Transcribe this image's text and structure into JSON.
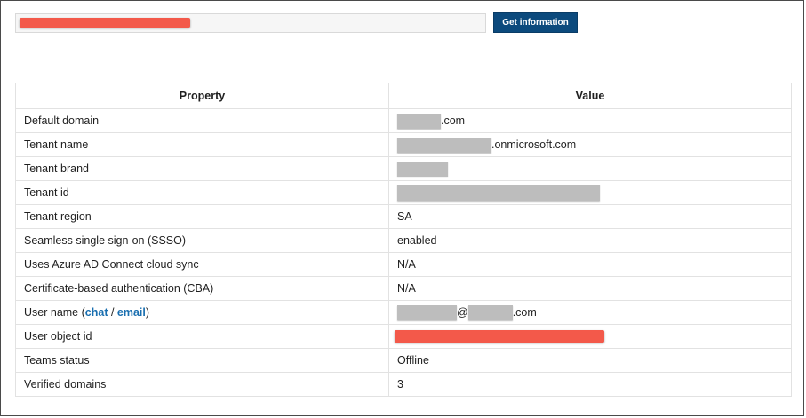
{
  "search": {
    "value": "",
    "button_label": "Get information"
  },
  "table": {
    "headers": [
      "Property",
      "Value"
    ],
    "rows": [
      {
        "property": "Default domain",
        "value_suffix": ".com"
      },
      {
        "property": "Tenant name",
        "value_suffix": ".onmicrosoft.com"
      },
      {
        "property": "Tenant brand",
        "value_suffix": ""
      },
      {
        "property": "Tenant id",
        "value_suffix": ""
      },
      {
        "property": "Tenant region",
        "value": "SA"
      },
      {
        "property": "Seamless single sign-on (SSSO)",
        "value": "enabled"
      },
      {
        "property": "Uses Azure AD Connect cloud sync",
        "value": "N/A"
      },
      {
        "property": "Certificate-based authentication (CBA)",
        "value": "N/A"
      },
      {
        "property_prefix": "User name (",
        "link_chat": "chat",
        "separator": " / ",
        "link_email": "email",
        "property_suffix": ")",
        "value_at": "@",
        "value_suffix": ".com"
      },
      {
        "property": "User object id",
        "value_suffix": ""
      },
      {
        "property": "Teams status",
        "value": "Offline"
      },
      {
        "property": "Verified domains",
        "value": "3"
      }
    ]
  },
  "colors": {
    "button_bg": "#0c4a7d",
    "link": "#1a6fb0",
    "redaction_red": "#f3594a",
    "redaction_gray": "#bdbdbd"
  }
}
